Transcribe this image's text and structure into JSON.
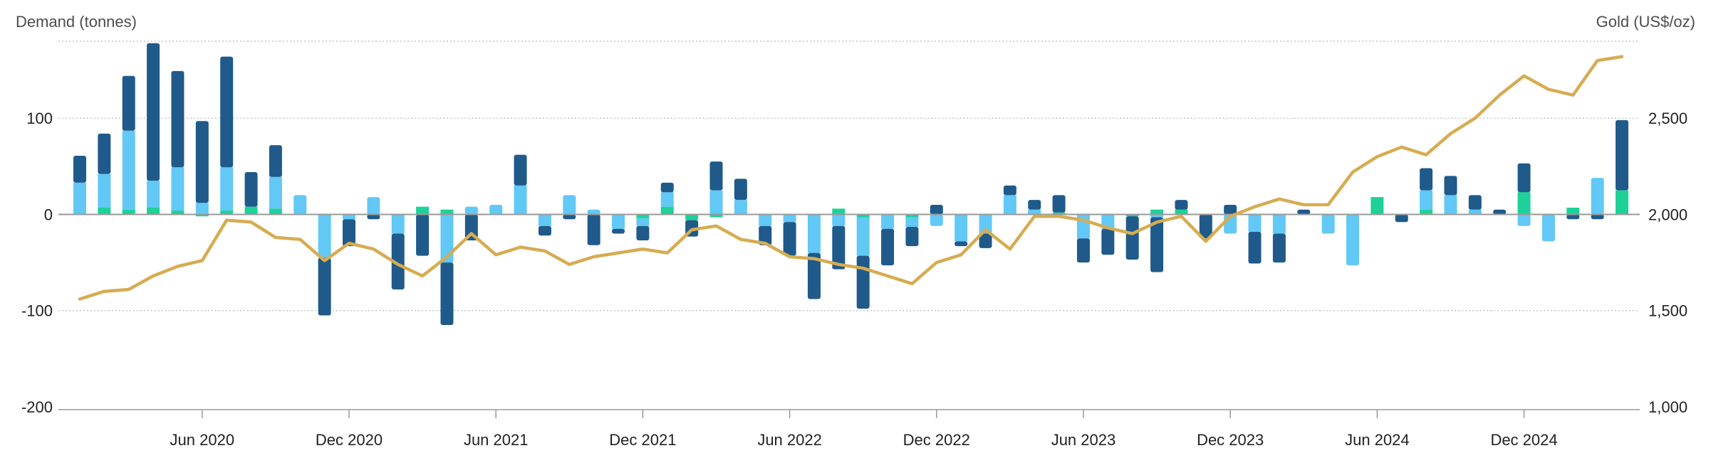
{
  "colors": {
    "dark_blue": "#1f5a8a",
    "light_blue": "#62c8f6",
    "green": "#1ed198",
    "gold": "#d6ac52",
    "text": "#4d4d4d",
    "grid": "#b8b8b8"
  },
  "chart_data": {
    "type": "bar",
    "left_axis_title": "Demand (tonnes)",
    "right_axis_title": "Gold (US$/oz)",
    "y_left": {
      "min": -200,
      "max": 180,
      "ticks": [
        100,
        0,
        -100,
        -200
      ],
      "tick_labels": [
        "100",
        "0",
        "-100",
        "-200"
      ]
    },
    "y_right": {
      "min": 1000,
      "max": 2900,
      "ticks": [
        2500,
        2000,
        1500,
        1000
      ],
      "tick_labels": [
        "2,500",
        "2,000",
        "1,500",
        "1,000"
      ]
    },
    "x_tick_labels": [
      "Jun 2020",
      "Dec 2020",
      "Jun 2021",
      "Dec 2021",
      "Jun 2022",
      "Dec 2022",
      "Jun 2023",
      "Dec 2023",
      "Jun 2024",
      "Dec 2024"
    ],
    "x_tick_month_index": [
      5,
      11,
      17,
      23,
      29,
      35,
      41,
      47,
      53,
      59
    ],
    "x_start": "Jan 2020",
    "months": 64,
    "grid": true,
    "stacked": true,
    "series": [
      {
        "key": "green",
        "color": "#1ed198",
        "values": [
          0,
          7,
          5,
          7,
          4,
          -2,
          4,
          8,
          6,
          0,
          0,
          0,
          0,
          0,
          8,
          5,
          0,
          0,
          0,
          0,
          0,
          0,
          0,
          -4,
          8,
          -6,
          -3,
          0,
          0,
          0,
          0,
          6,
          -3,
          0,
          -3,
          0,
          0,
          0,
          0,
          0,
          2,
          0,
          0,
          -2,
          5,
          5,
          0,
          0,
          0,
          0,
          0,
          0,
          0,
          18,
          0,
          5,
          0,
          0,
          0,
          23,
          0,
          7,
          0,
          25
        ]
      },
      {
        "key": "light_blue",
        "color": "#62c8f6",
        "values": [
          33,
          35,
          82,
          28,
          45,
          12,
          45,
          0,
          33,
          20,
          -45,
          -5,
          18,
          -20,
          0,
          -50,
          8,
          10,
          30,
          -12,
          20,
          5,
          -15,
          -8,
          15,
          0,
          25,
          15,
          -12,
          -8,
          -40,
          -12,
          -40,
          -15,
          -10,
          -12,
          -28,
          -20,
          20,
          5,
          0,
          -25,
          -15,
          0,
          -3,
          0,
          0,
          -20,
          -18,
          -20,
          0,
          -20,
          -53,
          0,
          0,
          20,
          20,
          5,
          0,
          -12,
          -28,
          0,
          38,
          0
        ]
      },
      {
        "key": "dark_blue",
        "color": "#1f5a8a",
        "values": [
          28,
          42,
          57,
          143,
          100,
          85,
          115,
          36,
          33,
          0,
          -60,
          -28,
          -5,
          -58,
          -43,
          -65,
          -27,
          0,
          32,
          -10,
          -5,
          -32,
          -5,
          -15,
          10,
          -17,
          30,
          22,
          -20,
          -35,
          -48,
          -45,
          -55,
          -38,
          -20,
          10,
          -5,
          -15,
          10,
          10,
          18,
          -25,
          -27,
          -45,
          -57,
          10,
          -25,
          10,
          -33,
          -30,
          5,
          0,
          0,
          0,
          -8,
          23,
          20,
          15,
          5,
          30,
          0,
          -5,
          -5,
          73
        ]
      },
      {
        "key": "gold_price",
        "color": "#d6ac52",
        "values": [
          1560,
          1600,
          1610,
          1680,
          1730,
          1760,
          1970,
          1960,
          1880,
          1870,
          1760,
          1850,
          1820,
          1740,
          1680,
          1780,
          1900,
          1790,
          1830,
          1810,
          1740,
          1780,
          1800,
          1820,
          1800,
          1920,
          1940,
          1870,
          1850,
          1780,
          1770,
          1740,
          1720,
          1680,
          1640,
          1750,
          1790,
          1920,
          1820,
          1990,
          1990,
          1970,
          1930,
          1900,
          1960,
          1990,
          1860,
          1990,
          2040,
          2080,
          2050,
          2050,
          2220,
          2300,
          2350,
          2310,
          2420,
          2500,
          2620,
          2720,
          2650,
          2620,
          2800,
          2820
        ]
      }
    ]
  }
}
